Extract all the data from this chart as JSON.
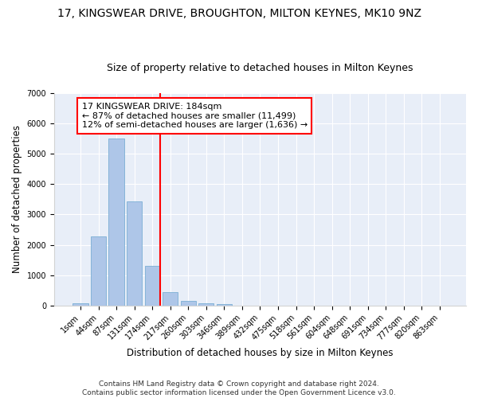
{
  "title": "17, KINGSWEAR DRIVE, BROUGHTON, MILTON KEYNES, MK10 9NZ",
  "subtitle": "Size of property relative to detached houses in Milton Keynes",
  "xlabel": "Distribution of detached houses by size in Milton Keynes",
  "ylabel": "Number of detached properties",
  "footer_line1": "Contains HM Land Registry data © Crown copyright and database right 2024.",
  "footer_line2": "Contains public sector information licensed under the Open Government Licence v3.0.",
  "annotation_line1": "17 KINGSWEAR DRIVE: 184sqm",
  "annotation_line2": "← 87% of detached houses are smaller (11,499)",
  "annotation_line3": "12% of semi-detached houses are larger (1,636) →",
  "bar_color": "#aec6e8",
  "bar_edgecolor": "#7aafd4",
  "vline_color": "red",
  "vline_x_index": 4.43,
  "categories": [
    "1sqm",
    "44sqm",
    "87sqm",
    "131sqm",
    "174sqm",
    "217sqm",
    "260sqm",
    "303sqm",
    "346sqm",
    "389sqm",
    "432sqm",
    "475sqm",
    "518sqm",
    "561sqm",
    "604sqm",
    "648sqm",
    "691sqm",
    "734sqm",
    "777sqm",
    "820sqm",
    "863sqm"
  ],
  "values": [
    75,
    2270,
    5490,
    3440,
    1310,
    440,
    160,
    80,
    60,
    0,
    0,
    0,
    0,
    0,
    0,
    0,
    0,
    0,
    0,
    0,
    0
  ],
  "ylim": [
    0,
    7000
  ],
  "yticks": [
    0,
    1000,
    2000,
    3000,
    4000,
    5000,
    6000,
    7000
  ],
  "background_color": "#e8eef8",
  "grid_color": "white",
  "title_fontsize": 10,
  "subtitle_fontsize": 9,
  "xlabel_fontsize": 8.5,
  "ylabel_fontsize": 8.5,
  "tick_fontsize": 7,
  "annotation_fontsize": 8,
  "footer_fontsize": 6.5
}
